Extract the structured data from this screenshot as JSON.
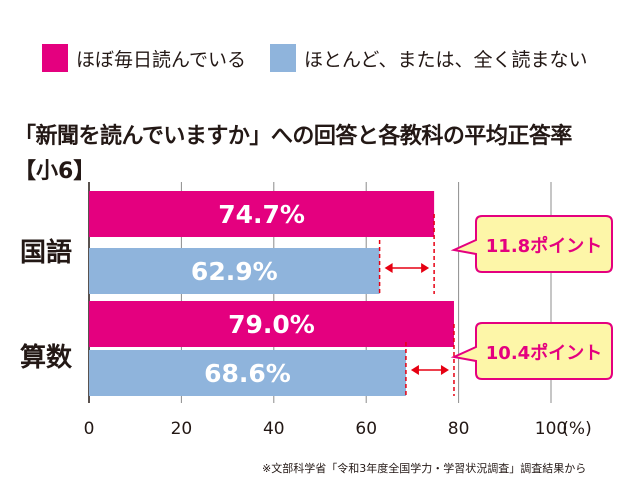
{
  "legend": [
    {
      "label": "ほぼ毎日読んでいる",
      "color": "#e4007f"
    },
    {
      "label": "ほとんど、または、全く読まない",
      "color": "#8fb4dc"
    }
  ],
  "title": "「新聞を読んでいますか」への回答と各教科の平均正答率",
  "subtitle": "【小6】",
  "source": "※文部科学省「令和3年度全国学力・学習状況調査」調査結果から",
  "chart_data": {
    "type": "bar",
    "orientation": "horizontal",
    "categories": [
      "国語",
      "算数"
    ],
    "series": [
      {
        "name": "ほぼ毎日読んでいる",
        "color": "#e4007f",
        "values": [
          74.7,
          79.0
        ]
      },
      {
        "name": "ほとんど、または、全く読まない",
        "color": "#8fb4dc",
        "values": [
          62.9,
          68.6
        ]
      }
    ],
    "value_labels": [
      [
        "74.7%",
        "79.0%"
      ],
      [
        "62.9%",
        "68.6%"
      ]
    ],
    "callouts": [
      "11.8ポイント",
      "10.4ポイント"
    ],
    "callout_fill": "#fdf6a8",
    "callout_border": "#e4007f",
    "xlim": [
      0,
      100
    ],
    "xticks": [
      0,
      20,
      40,
      60,
      80,
      100
    ],
    "xtick_labels": [
      "0",
      "20",
      "40",
      "60",
      "80",
      "100"
    ],
    "xunit": "(%)",
    "grid": true
  }
}
